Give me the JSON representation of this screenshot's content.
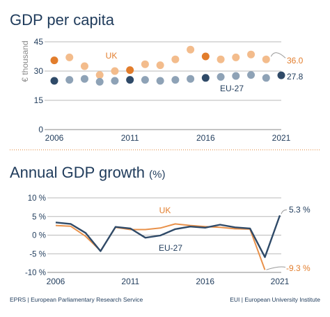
{
  "colors": {
    "navy": "#2f4a68",
    "orange": "#e9914a",
    "orange_light": "#f3bc8c",
    "orange_dark": "#e27d2c",
    "navy_dark": "#1f3b5b",
    "grid": "#b9b9b9",
    "divider": "#e79a58"
  },
  "footer": {
    "left": "EPRS | European Parliamentary Research Service",
    "right": "EUI | European University Institute"
  },
  "chart_data": [
    {
      "type": "scatter",
      "title": "GDP per capita",
      "ylabel": "€ thousand",
      "xlabel": "",
      "ylim": [
        0,
        45
      ],
      "yticks": [
        "0",
        "15",
        "30",
        "45"
      ],
      "xticks": [
        "2006",
        "2011",
        "2016",
        "2021"
      ],
      "grid": true,
      "x": [
        2006,
        2007,
        2008,
        2009,
        2010,
        2011,
        2012,
        2013,
        2014,
        2015,
        2016,
        2017,
        2018,
        2019,
        2020,
        2021
      ],
      "series": [
        {
          "name": "UK",
          "values": [
            35.5,
            37.0,
            32.5,
            28.0,
            30.0,
            30.5,
            33.5,
            33.0,
            36.0,
            41.0,
            37.5,
            36.0,
            37.0,
            38.5,
            36.0,
            null
          ],
          "highlight_years": [
            2006,
            2011,
            2016
          ]
        },
        {
          "name": "EU-27",
          "values": [
            25.0,
            25.5,
            26.0,
            24.5,
            25.0,
            25.5,
            25.5,
            25.0,
            25.5,
            26.0,
            26.5,
            27.0,
            27.5,
            28.0,
            26.5,
            27.8
          ],
          "highlight_years": [
            2006,
            2011,
            2016,
            2021
          ]
        }
      ],
      "annotations": {
        "uk_label": "UK",
        "eu_label": "EU-27",
        "uk_end_label": "36.0",
        "eu_end_label": "27.8"
      }
    },
    {
      "type": "line",
      "title": "Annual GDP growth",
      "title_unit": "(%)",
      "ylim": [
        -10,
        10
      ],
      "yticks": [
        "10 %",
        "5 %",
        "0 %",
        "-5 %",
        "-10 %"
      ],
      "xticks": [
        "2006",
        "2011",
        "2016",
        "2021"
      ],
      "grid": true,
      "x": [
        2006,
        2007,
        2008,
        2009,
        2010,
        2011,
        2012,
        2013,
        2014,
        2015,
        2016,
        2017,
        2018,
        2019,
        2020,
        2021
      ],
      "series": [
        {
          "name": "UK",
          "values": [
            2.6,
            2.4,
            -0.3,
            -4.2,
            2.1,
            1.5,
            1.5,
            1.9,
            3.0,
            2.6,
            2.3,
            2.1,
            1.7,
            1.6,
            -9.3,
            null
          ]
        },
        {
          "name": "EU-27",
          "values": [
            3.4,
            3.0,
            0.6,
            -4.3,
            2.2,
            1.8,
            -0.7,
            -0.1,
            1.6,
            2.3,
            2.0,
            2.8,
            2.1,
            1.8,
            -5.9,
            5.3
          ]
        }
      ],
      "annotations": {
        "uk_label": "UK",
        "eu_label": "EU-27",
        "eu_end_label": "5.3 %",
        "uk_end_label": "-9.3 %"
      }
    }
  ]
}
